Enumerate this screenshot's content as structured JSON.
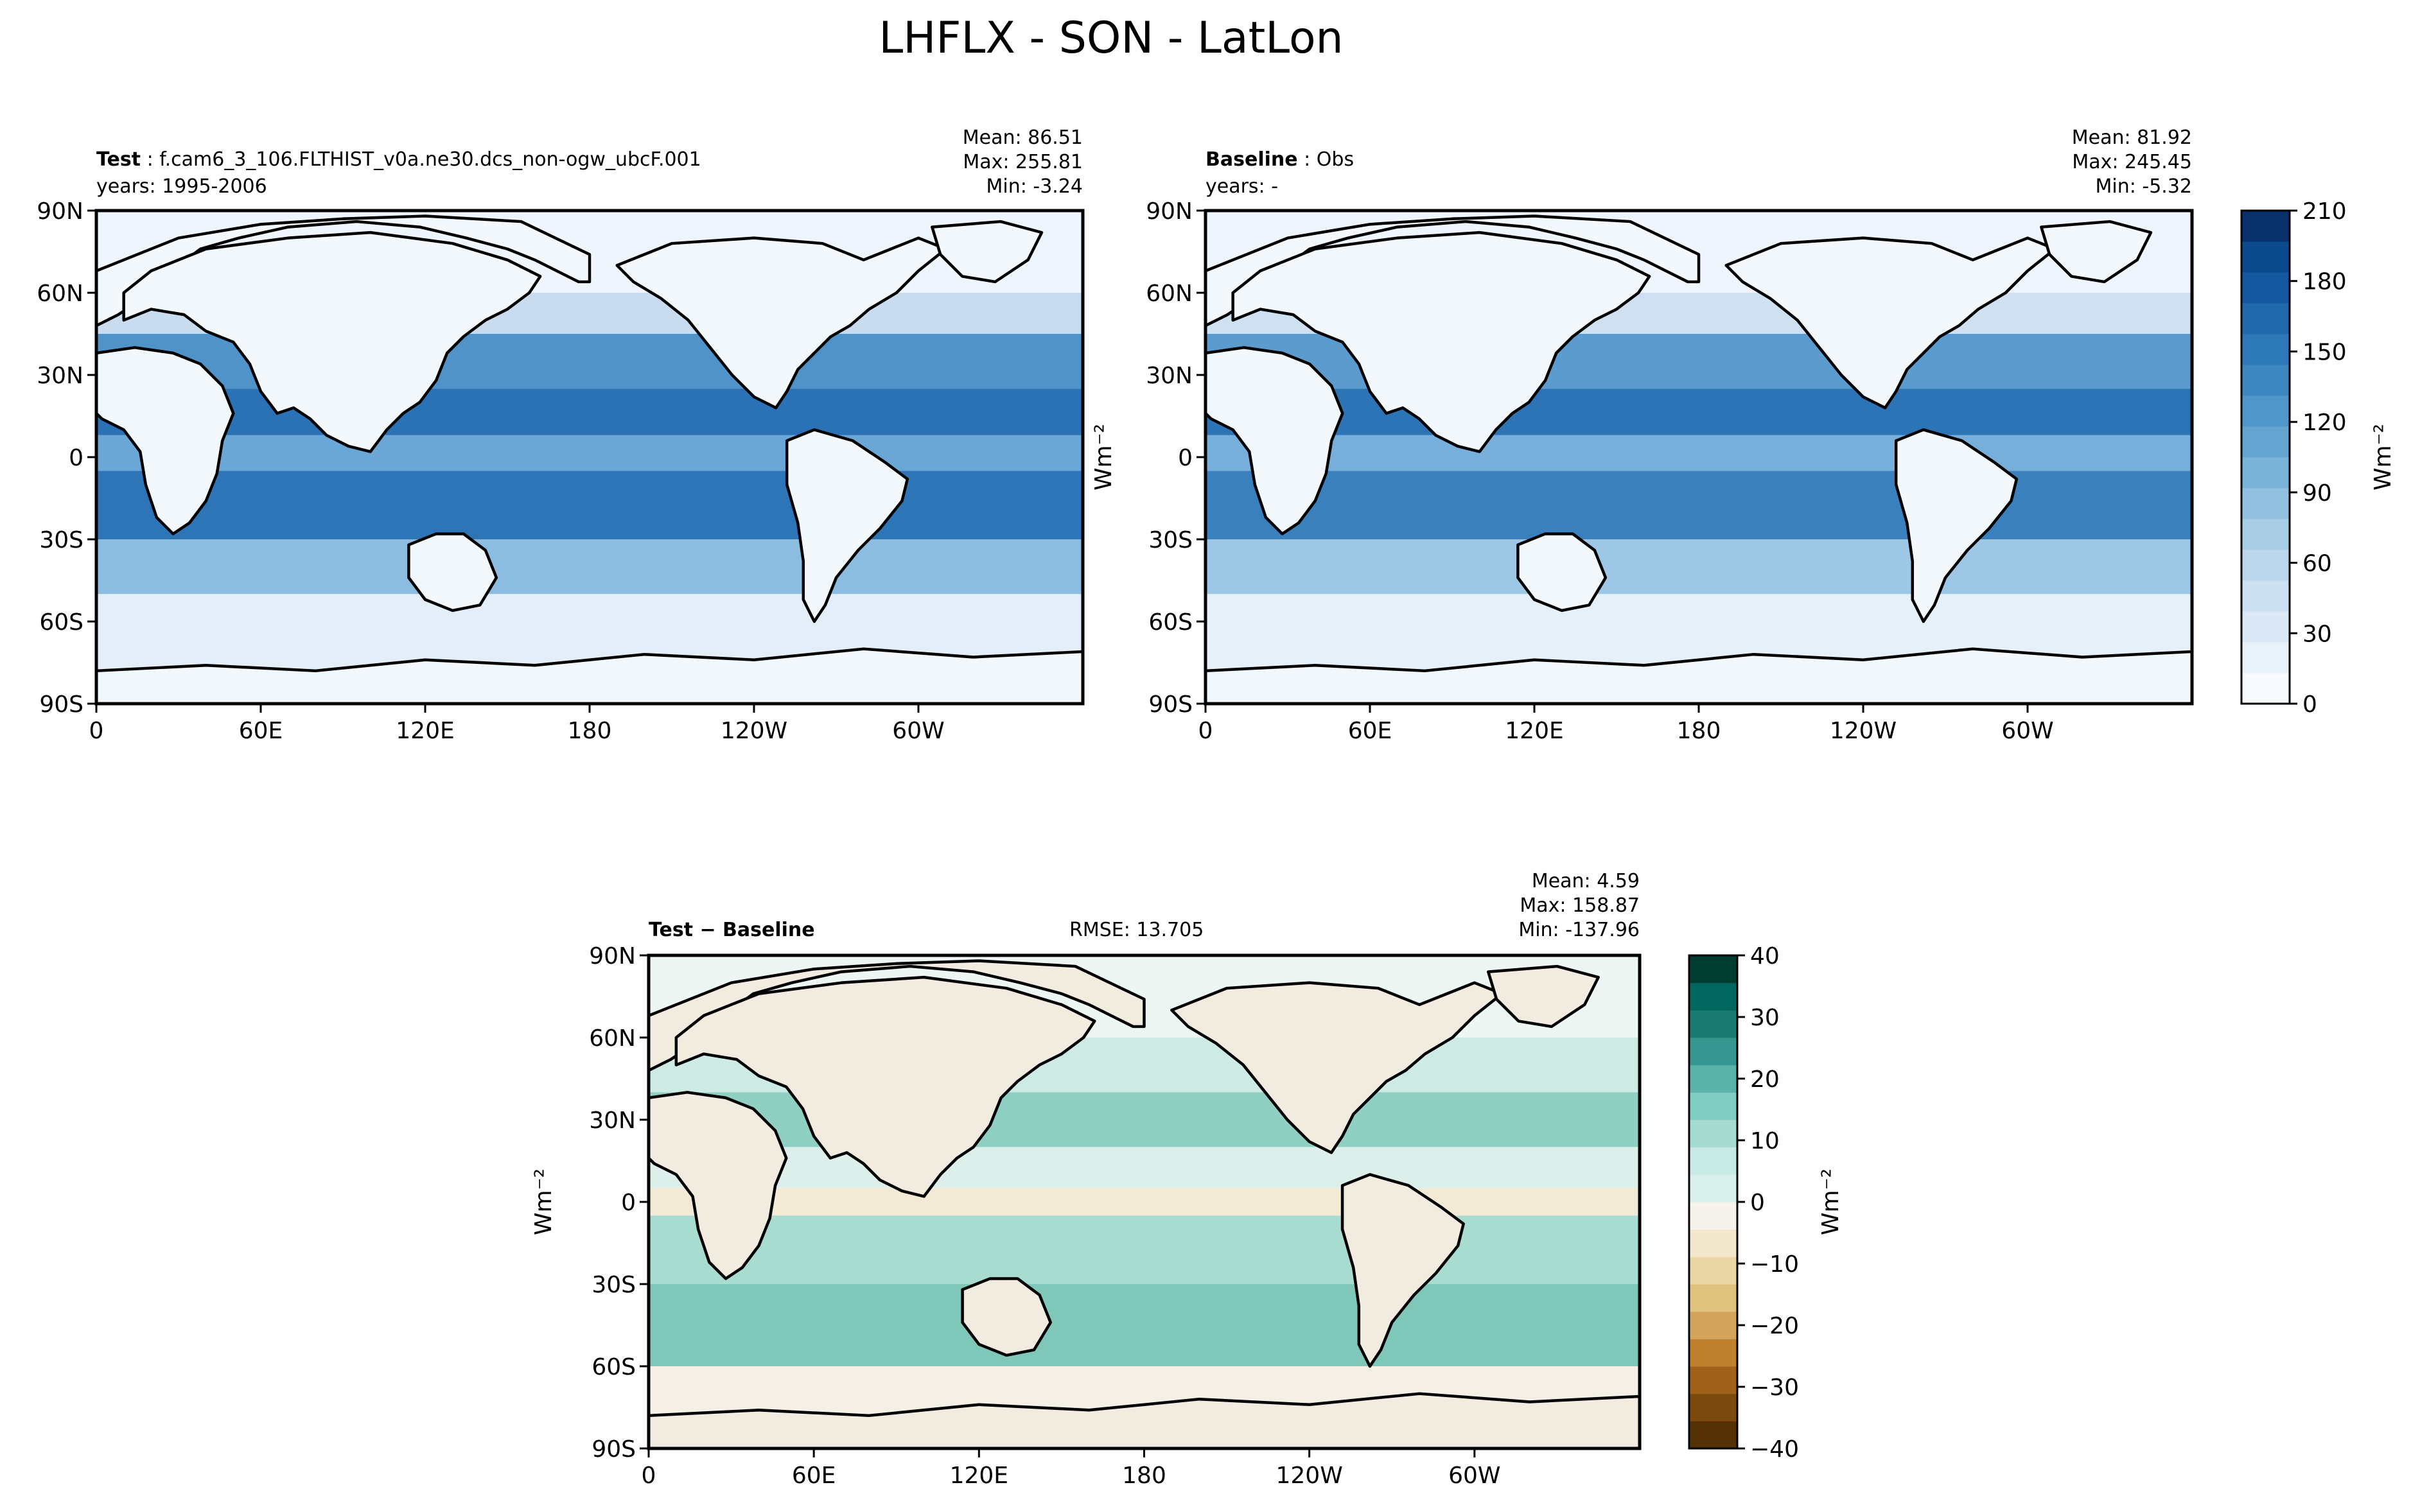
{
  "figure_title": "LHFLX - SON - LatLon",
  "chart_data": [
    {
      "type": "heatmap",
      "projection": "latlon",
      "label_bold": "Test",
      "label_rest": "f.cam6_3_106.FLTHIST_v0a.ne30.dcs_non-ogw_ubcF.001",
      "years_label": "years: 1995-2006",
      "stats": [
        "Mean: 86.51",
        "Max: 255.81",
        "Min: -3.24"
      ],
      "xticks": [
        "0",
        "60E",
        "120E",
        "180",
        "120W",
        "60W"
      ],
      "yticks": [
        "90N",
        "60N",
        "30N",
        "0",
        "30S",
        "60S",
        "90S"
      ],
      "ocean_bands_by_latitude": [
        {
          "lat_from": 90,
          "lat_to": 60,
          "color": "#eef5fc"
        },
        {
          "lat_from": 60,
          "lat_to": 45,
          "color": "#c9dcef"
        },
        {
          "lat_from": 45,
          "lat_to": 25,
          "color": "#4f93c9"
        },
        {
          "lat_from": 25,
          "lat_to": 8,
          "color": "#2a72b5"
        },
        {
          "lat_from": 8,
          "lat_to": -5,
          "color": "#6aa6d6"
        },
        {
          "lat_from": -5,
          "lat_to": -30,
          "color": "#2d75b6"
        },
        {
          "lat_from": -30,
          "lat_to": -50,
          "color": "#8cbde0"
        },
        {
          "lat_from": -50,
          "lat_to": -90,
          "color": "#e4eef8"
        }
      ]
    },
    {
      "type": "heatmap",
      "projection": "latlon",
      "label_bold": "Baseline",
      "label_rest": "Obs",
      "years_label": "years: -",
      "stats": [
        "Mean: 81.92",
        "Max: 245.45",
        "Min: -5.32"
      ],
      "xticks": [
        "0",
        "60E",
        "120E",
        "180",
        "120W",
        "60W"
      ],
      "yticks": [
        "90N",
        "60N",
        "30N",
        "0",
        "30S",
        "60S",
        "90S"
      ],
      "ocean_bands_by_latitude": [
        {
          "lat_from": 90,
          "lat_to": 60,
          "color": "#eef5fc"
        },
        {
          "lat_from": 60,
          "lat_to": 45,
          "color": "#cfe0f1"
        },
        {
          "lat_from": 45,
          "lat_to": 25,
          "color": "#5b9bcd"
        },
        {
          "lat_from": 25,
          "lat_to": 8,
          "color": "#2c74b6"
        },
        {
          "lat_from": 8,
          "lat_to": -5,
          "color": "#78afda"
        },
        {
          "lat_from": -5,
          "lat_to": -30,
          "color": "#3a80bd"
        },
        {
          "lat_from": -30,
          "lat_to": -50,
          "color": "#9ec7e5"
        },
        {
          "lat_from": -50,
          "lat_to": -90,
          "color": "#e6f0f9"
        }
      ],
      "colorbar": {
        "label": "Wm⁻²",
        "ticks": [
          "0",
          "30",
          "60",
          "90",
          "120",
          "150",
          "180",
          "210"
        ],
        "range": [
          0,
          210
        ],
        "colors": [
          "#f7fbff",
          "#e9f2fa",
          "#dbe9f6",
          "#cde0f1",
          "#bcd7eb",
          "#a8cde4",
          "#92c0df",
          "#7ab3d8",
          "#64a4d0",
          "#5096c8",
          "#3d87c0",
          "#2d78b6",
          "#1f69ac",
          "#14599f",
          "#0b4a8d",
          "#08306b"
        ]
      },
      "ylabel": "Wm⁻²"
    },
    {
      "type": "heatmap",
      "projection": "latlon",
      "label_bold": "Test − Baseline",
      "rmse": "RMSE: 13.705",
      "stats": [
        "Mean:  4.59",
        "Max: 158.87",
        "Min: -137.96"
      ],
      "xticks": [
        "0",
        "60E",
        "120E",
        "180",
        "120W",
        "60W"
      ],
      "yticks": [
        "90N",
        "60N",
        "30N",
        "0",
        "30S",
        "60S",
        "90S"
      ],
      "ylabel": "Wm⁻²",
      "ocean_bands_by_latitude": [
        {
          "lat_from": 90,
          "lat_to": 60,
          "color": "#eef6f3"
        },
        {
          "lat_from": 60,
          "lat_to": 40,
          "color": "#cdeae4"
        },
        {
          "lat_from": 40,
          "lat_to": 20,
          "color": "#8fd0c3"
        },
        {
          "lat_from": 20,
          "lat_to": 5,
          "color": "#dcefea"
        },
        {
          "lat_from": 5,
          "lat_to": -5,
          "color": "#f3ead6"
        },
        {
          "lat_from": -5,
          "lat_to": -30,
          "color": "#a9dcd1"
        },
        {
          "lat_from": -30,
          "lat_to": -60,
          "color": "#7fc8b9"
        },
        {
          "lat_from": -60,
          "lat_to": -90,
          "color": "#f4f0e6"
        }
      ],
      "colorbar": {
        "label": "Wm⁻²",
        "ticks": [
          "−40",
          "−30",
          "−20",
          "−10",
          "0",
          "10",
          "20",
          "30",
          "40"
        ],
        "range": [
          -40,
          40
        ],
        "colors": [
          "#543005",
          "#7c4a0e",
          "#a0611b",
          "#bf812d",
          "#d2a45c",
          "#dfc27d",
          "#ead6a6",
          "#f3e8cd",
          "#f5f3ec",
          "#d9f0ec",
          "#c7eae5",
          "#a5dbd1",
          "#80cdc1",
          "#5ab2a8",
          "#35978f",
          "#1b7b73",
          "#01665e",
          "#003c30"
        ]
      }
    }
  ]
}
